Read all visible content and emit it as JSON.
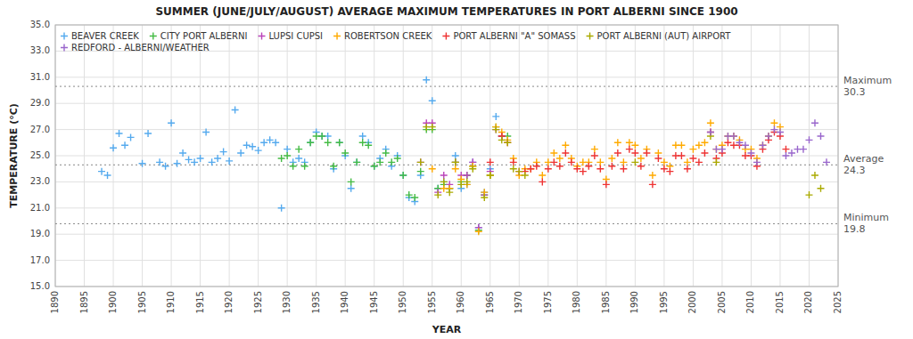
{
  "chart_data": {
    "type": "scatter",
    "title": "SUMMER (JUNE/JULY/AUGUST) AVERAGE MAXIMUM TEMPERATURES IN PORT ALBERNI SINCE 1900",
    "x_label": "YEAR",
    "y_label": "TEMPERATURE (°C)",
    "xlim": [
      1890,
      2025
    ],
    "ylim": [
      15.0,
      35.0
    ],
    "xticks": [
      1890,
      1895,
      1900,
      1905,
      1910,
      1915,
      1920,
      1925,
      1930,
      1935,
      1940,
      1945,
      1950,
      1955,
      1960,
      1965,
      1970,
      1975,
      1980,
      1985,
      1990,
      1995,
      2000,
      2005,
      2010,
      2015,
      2020,
      2025
    ],
    "yticks": [
      {
        "value": 15.0,
        "label": "15.0"
      },
      {
        "value": 17.0,
        "label": "17.0"
      },
      {
        "value": 19.0,
        "label": "19.0"
      },
      {
        "value": 21.0,
        "label": "21.0"
      },
      {
        "value": 23.0,
        "label": "23.0"
      },
      {
        "value": 25.0,
        "label": "25.0"
      },
      {
        "value": 27.0,
        "label": "27.0"
      },
      {
        "value": 29.0,
        "label": "29.0"
      },
      {
        "value": 31.0,
        "label": "31.0"
      },
      {
        "value": 33.0,
        "label": "33.0"
      },
      {
        "value": 35.0,
        "label": "35.0"
      }
    ],
    "grid": true,
    "legend": "upper left",
    "annotations": [
      {
        "text": "Maximum",
        "y": 30.3
      },
      {
        "text": "Average",
        "y": 24.3
      },
      {
        "text": "Minimum",
        "y": 19.8
      }
    ],
    "series": [
      {
        "name": "BEAVER CREEK",
        "color": "#55aaee",
        "marker": "plus",
        "x": [
          1898,
          1899,
          1900,
          1901,
          1902,
          1903,
          1905,
          1906,
          1908,
          1909,
          1910,
          1911,
          1912,
          1913,
          1914,
          1915,
          1916,
          1917,
          1918,
          1919,
          1920,
          1921,
          1922,
          1923,
          1924,
          1925,
          1926,
          1927,
          1928,
          1929,
          1930,
          1931,
          1932,
          1933,
          1934,
          1935,
          1936,
          1937,
          1938,
          1939,
          1940,
          1941,
          1942,
          1943,
          1944,
          1945,
          1946,
          1947,
          1948,
          1949,
          1950,
          1951,
          1952,
          1953,
          1954,
          1955,
          1956,
          1957,
          1958,
          1959,
          1960,
          1961,
          1962,
          1963,
          1964,
          1965,
          1966
        ],
        "values": [
          23.8,
          23.5,
          25.6,
          26.7,
          25.8,
          26.4,
          24.4,
          26.7,
          24.5,
          24.2,
          27.5,
          24.4,
          25.2,
          24.7,
          24.5,
          24.8,
          26.8,
          24.5,
          24.8,
          25.3,
          24.6,
          28.5,
          25.2,
          25.8,
          25.7,
          25.4,
          26.0,
          26.2,
          26.0,
          21.0,
          25.5,
          24.5,
          24.8,
          24.5,
          26.0,
          26.8,
          26.5,
          26.5,
          24.0,
          26.0,
          25.0,
          22.5,
          24.5,
          26.5,
          26.0,
          24.2,
          24.8,
          25.5,
          24.2,
          25.0,
          23.5,
          21.8,
          21.5,
          23.5,
          30.8,
          29.2,
          22.5,
          23.0,
          22.5,
          25.0,
          22.5,
          22.8,
          24.5,
          19.5,
          22.2,
          24.0,
          28.0
        ]
      },
      {
        "name": "CITY PORT ALBERNI",
        "color": "#44bb44",
        "marker": "plus",
        "x": [
          1929,
          1930,
          1931,
          1932,
          1933,
          1934,
          1935,
          1936,
          1937,
          1938,
          1939,
          1940,
          1941,
          1942,
          1943,
          1944,
          1945,
          1946,
          1947,
          1948,
          1949,
          1950,
          1951,
          1952,
          1953,
          1954,
          1955,
          1956,
          1957,
          1958,
          1959,
          1960,
          1961,
          1962,
          1963,
          1964,
          1965,
          1966,
          1967,
          1968
        ],
        "values": [
          24.8,
          25.0,
          24.2,
          25.5,
          24.2,
          26.0,
          26.5,
          26.5,
          26.0,
          24.2,
          26.0,
          25.2,
          23.0,
          24.5,
          26.0,
          25.8,
          24.2,
          24.5,
          25.2,
          24.5,
          24.8,
          23.5,
          22.0,
          21.8,
          23.8,
          27.0,
          27.0,
          22.5,
          22.8,
          22.5,
          24.5,
          23.0,
          23.5,
          24.2,
          19.3,
          22.0,
          23.5,
          27.2,
          26.5,
          26.5
        ]
      },
      {
        "name": "LUPSI CUPSI",
        "color": "#bb44bb",
        "marker": "plus",
        "x": [
          1953,
          1954,
          1955,
          1956,
          1957,
          1958,
          1959,
          1960,
          1961,
          1962,
          1963,
          1964,
          1965,
          1966,
          1967
        ],
        "values": [
          24.5,
          27.5,
          27.5,
          22.2,
          23.5,
          22.8,
          24.5,
          23.5,
          23.5,
          24.5,
          19.5,
          22.0,
          23.8,
          27.0,
          26.5
        ]
      },
      {
        "name": "ROBERTSON CREEK",
        "color": "#ffaa00",
        "marker": "plus",
        "x": [
          1955,
          1957,
          1958,
          1959,
          1960,
          1961,
          1962,
          1963,
          1964,
          1965,
          1966,
          1967,
          1968,
          1969,
          1970,
          1971,
          1972,
          1973,
          1974,
          1975,
          1976,
          1977,
          1978,
          1979,
          1980,
          1981,
          1982,
          1983,
          1984,
          1985,
          1986,
          1987,
          1988,
          1989,
          1990,
          1991,
          1992,
          1993,
          1994,
          1995,
          1996,
          1997,
          1998,
          1999,
          2000,
          2001,
          2002,
          2003,
          2004,
          2005,
          2006,
          2007,
          2008,
          2009,
          2010,
          2011,
          2012,
          2013,
          2014,
          2015
        ],
        "values": [
          24.0,
          22.5,
          22.5,
          24.0,
          23.2,
          22.8,
          24.2,
          19.2,
          22.2,
          23.5,
          27.2,
          26.8,
          26.2,
          24.8,
          23.5,
          24.0,
          24.0,
          24.5,
          23.5,
          24.5,
          25.2,
          24.8,
          25.8,
          24.8,
          24.2,
          24.5,
          24.5,
          25.5,
          24.5,
          23.2,
          24.8,
          26.0,
          24.5,
          26.0,
          25.8,
          24.8,
          25.5,
          23.5,
          25.2,
          24.5,
          24.2,
          25.8,
          25.8,
          24.5,
          25.5,
          25.8,
          26.0,
          27.5,
          25.5,
          25.8,
          26.5,
          26.5,
          26.2,
          25.5,
          25.5,
          24.8,
          25.8,
          26.5,
          27.5,
          27.2
        ]
      },
      {
        "name": "PORT ALBERNI \"A\" SOMASS",
        "color": "#ee3333",
        "marker": "plus",
        "x": [
          1965,
          1967,
          1968,
          1969,
          1970,
          1971,
          1972,
          1973,
          1974,
          1975,
          1976,
          1977,
          1978,
          1979,
          1980,
          1981,
          1982,
          1983,
          1984,
          1985,
          1986,
          1987,
          1988,
          1989,
          1990,
          1991,
          1992,
          1993,
          1994,
          1995,
          1996,
          1997,
          1998,
          1999,
          2000,
          2001,
          2002,
          2003,
          2004,
          2005,
          2006,
          2007,
          2008,
          2009,
          2010,
          2011,
          2012,
          2013,
          2014,
          2015,
          2016
        ],
        "values": [
          24.5,
          26.5,
          26.0,
          24.5,
          23.8,
          23.8,
          24.0,
          24.2,
          23.0,
          24.0,
          24.5,
          24.2,
          25.2,
          24.5,
          24.0,
          23.8,
          24.2,
          25.0,
          24.0,
          22.8,
          24.2,
          25.2,
          24.0,
          25.5,
          25.2,
          24.2,
          25.2,
          22.8,
          24.8,
          24.0,
          23.8,
          25.0,
          25.0,
          24.0,
          24.8,
          24.5,
          25.2,
          26.8,
          24.8,
          25.2,
          26.0,
          25.8,
          25.8,
          25.0,
          25.0,
          24.2,
          25.5,
          26.2,
          26.8,
          26.5,
          25.5
        ]
      },
      {
        "name": "PORT ALBERNI (AUT) AIRPORT",
        "color": "#aaaa00",
        "marker": "plus",
        "x": [
          1953,
          1954,
          1955,
          1956,
          1957,
          1958,
          1959,
          1960,
          1961,
          1962,
          1964,
          1965,
          1966,
          1967,
          1968,
          1969,
          1970,
          1971,
          1990,
          2003,
          2004,
          2020,
          2021,
          2022
        ],
        "values": [
          24.5,
          27.2,
          27.2,
          22.0,
          23.0,
          22.2,
          24.5,
          22.8,
          23.0,
          24.0,
          21.8,
          23.5,
          27.0,
          26.2,
          26.0,
          24.0,
          23.8,
          23.5,
          24.5,
          26.5,
          24.5,
          22.0,
          23.5,
          22.5
        ]
      },
      {
        "name": "REDFORD - ALBERNI/WEATHER",
        "color": "#9966cc",
        "marker": "plus",
        "x": [
          2003,
          2004,
          2005,
          2006,
          2007,
          2008,
          2009,
          2010,
          2011,
          2012,
          2013,
          2014,
          2015,
          2016,
          2017,
          2018,
          2019,
          2020,
          2021,
          2022,
          2023
        ],
        "values": [
          26.8,
          25.5,
          25.5,
          26.5,
          26.5,
          26.0,
          25.8,
          25.2,
          24.5,
          25.8,
          26.5,
          27.0,
          26.8,
          25.0,
          25.2,
          25.5,
          25.5,
          26.2,
          27.5,
          26.5,
          24.5
        ]
      }
    ]
  }
}
